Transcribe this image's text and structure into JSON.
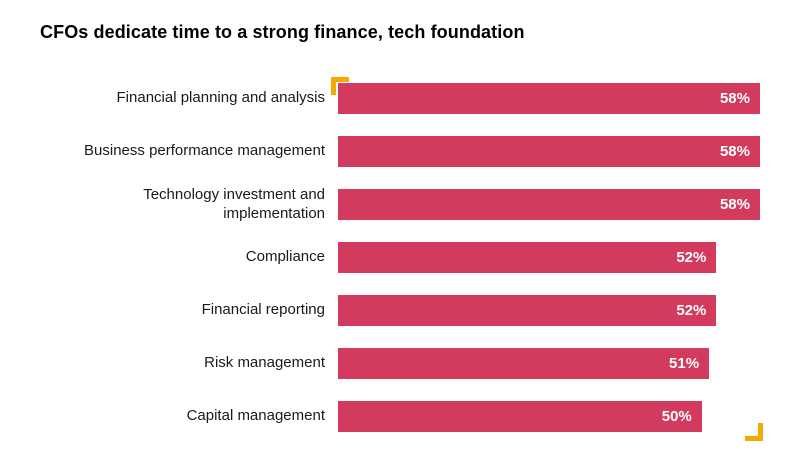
{
  "title": "CFOs dedicate time to a strong finance, tech foundation",
  "chart_data": {
    "type": "bar",
    "orientation": "horizontal",
    "title": "CFOs dedicate time to a strong finance, tech foundation",
    "categories": [
      "Financial planning and analysis",
      "Business performance management",
      "Technology investment and implementation",
      "Compliance",
      "Financial reporting",
      "Risk management",
      "Capital management"
    ],
    "values": [
      58,
      58,
      58,
      52,
      52,
      51,
      50
    ],
    "value_labels": [
      "58%",
      "58%",
      "58%",
      "52%",
      "52%",
      "51%",
      "50%"
    ],
    "xlim": [
      0,
      58
    ],
    "xlabel": "",
    "ylabel": "",
    "grid": false,
    "legend": false,
    "bar_color": "#d23b5d",
    "value_text_color": "#ffffff",
    "accent_color": "#f5a800",
    "label_color": "#1a1a1a"
  }
}
